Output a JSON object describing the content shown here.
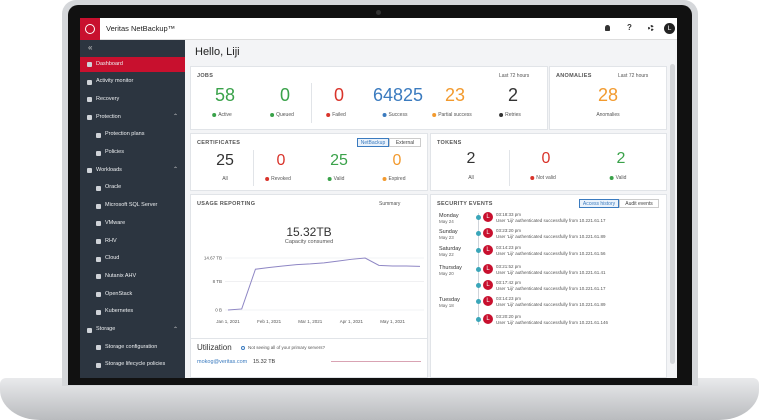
{
  "topbar": {
    "brand": "Veritas NetBackup™",
    "help": "?",
    "user_initial": "L"
  },
  "sidebar": {
    "items": [
      {
        "label": "Dashboard",
        "level": "top",
        "active": true
      },
      {
        "label": "Activity monitor",
        "level": "top",
        "active": false
      },
      {
        "label": "Recovery",
        "level": "top",
        "active": false
      },
      {
        "label": "Protection",
        "level": "section",
        "active": false
      },
      {
        "label": "Protection plans",
        "level": "sub",
        "active": false
      },
      {
        "label": "Policies",
        "level": "sub",
        "active": false
      },
      {
        "label": "Workloads",
        "level": "section",
        "active": false
      },
      {
        "label": "Oracle",
        "level": "sub",
        "active": false
      },
      {
        "label": "Microsoft SQL Server",
        "level": "sub",
        "active": false
      },
      {
        "label": "VMware",
        "level": "sub",
        "active": false
      },
      {
        "label": "RHV",
        "level": "sub",
        "active": false
      },
      {
        "label": "Cloud",
        "level": "sub",
        "active": false
      },
      {
        "label": "Nutanix AHV",
        "level": "sub",
        "active": false
      },
      {
        "label": "OpenStack",
        "level": "sub",
        "active": false
      },
      {
        "label": "Kubernetes",
        "level": "sub",
        "active": false
      },
      {
        "label": "Storage",
        "level": "section",
        "active": false
      },
      {
        "label": "Storage configuration",
        "level": "sub",
        "active": false
      },
      {
        "label": "Storage lifecycle policies",
        "level": "sub",
        "active": false
      }
    ]
  },
  "greeting": "Hello, Liji",
  "jobs": {
    "title": "JOBS",
    "filter": "Last 72 hours",
    "stats": [
      {
        "value": 58,
        "label": "Active",
        "color": "#3aa24a"
      },
      {
        "value": 0,
        "label": "Queued",
        "color": "#3aa24a"
      },
      {
        "value": 0,
        "label": "Failed",
        "color": "#d9342b"
      },
      {
        "value": 64825,
        "label": "Success",
        "color": "#3b7bbf"
      },
      {
        "value": 23,
        "label": "Partial success",
        "color": "#f29a2e"
      },
      {
        "value": 2,
        "label": "Retries",
        "color": "#333333"
      }
    ]
  },
  "anomalies": {
    "title": "ANOMALIES",
    "filter": "Last 72 hours",
    "value": 28,
    "label": "Anomalies",
    "color": "#f29a2e"
  },
  "certificates": {
    "title": "CERTIFICATES",
    "tabs": [
      "NetBackup",
      "External"
    ],
    "stats": [
      {
        "value": 25,
        "label": "All",
        "color": "#333333"
      },
      {
        "value": 0,
        "label": "Revoked",
        "color": "#d9342b"
      },
      {
        "value": 25,
        "label": "Valid",
        "color": "#3aa24a"
      },
      {
        "value": 0,
        "label": "Expired",
        "color": "#f29a2e"
      }
    ]
  },
  "tokens": {
    "title": "TOKENS",
    "stats": [
      {
        "value": 2,
        "label": "All",
        "color": "#333333"
      },
      {
        "value": 0,
        "label": "Not valid",
        "color": "#d9342b"
      },
      {
        "value": 2,
        "label": "Valid",
        "color": "#3aa24a"
      }
    ]
  },
  "usage": {
    "title": "USAGE REPORTING",
    "filter": "Summary",
    "total": "15.32TB",
    "total_label": "Capacity consumed",
    "chart": {
      "type": "line",
      "color": "#8e86c4",
      "categories": [
        "Jan 1, 2021",
        null,
        null,
        "Feb 1, 2021",
        null,
        null,
        "Mar 1, 2021",
        null,
        null,
        "Apr 1, 2021",
        null,
        null,
        "May 1, 2021",
        null,
        null
      ],
      "values": [
        0,
        0.3,
        11.5,
        12,
        12.4,
        12.8,
        13,
        13.3,
        13.8,
        14.3,
        14.67,
        12.6,
        12.4,
        12.4,
        12.3
      ],
      "ylim": [
        0,
        14.67
      ],
      "yticks": [
        {
          "value": 0,
          "label": "0 B"
        },
        {
          "value": 8,
          "label": "8 TB"
        },
        {
          "value": 14.67,
          "label": "14.67 TB"
        }
      ],
      "grid": true
    },
    "utilization": {
      "title": "Utilization",
      "hint": "Not seeing all of your primary servers?",
      "server": "mokog@veritas.com",
      "amount": "15.32 TB"
    }
  },
  "security_events": {
    "title": "SECURITY EVENTS",
    "tabs": [
      "Access history",
      "Audit events"
    ],
    "avatar_initial": "L",
    "events": [
      {
        "day": "Monday",
        "date": "May 24",
        "time": "03:18:33 pm",
        "text": "User 'Liji' authenticated successfully from 10.221.61.17"
      },
      {
        "day": "Sunday",
        "date": "May 23",
        "time": "03:23:20 pm",
        "text": "User 'Liji' authenticated successfully from 10.221.61.89"
      },
      {
        "day": "Saturday",
        "date": "May 22",
        "time": "03:14:23 pm",
        "text": "User 'Liji' authenticated successfully from 10.221.61.56"
      },
      {
        "day": "Thursday",
        "date": "May 20",
        "time": "03:21:52 pm",
        "text": "User 'Liji' authenticated successfully from 10.221.61.41"
      },
      {
        "time": "03:17:42 pm",
        "text": "User 'Liji' authenticated successfully from 10.221.61.17"
      },
      {
        "day": "Tuesday",
        "date": "May 18",
        "time": "03:14:23 pm",
        "text": "User 'Liji' authenticated successfully from 10.221.61.89"
      },
      {
        "time": "03:20:20 pm",
        "text": "User 'Liji' authenticated successfully from 10.221.61.146"
      }
    ]
  }
}
